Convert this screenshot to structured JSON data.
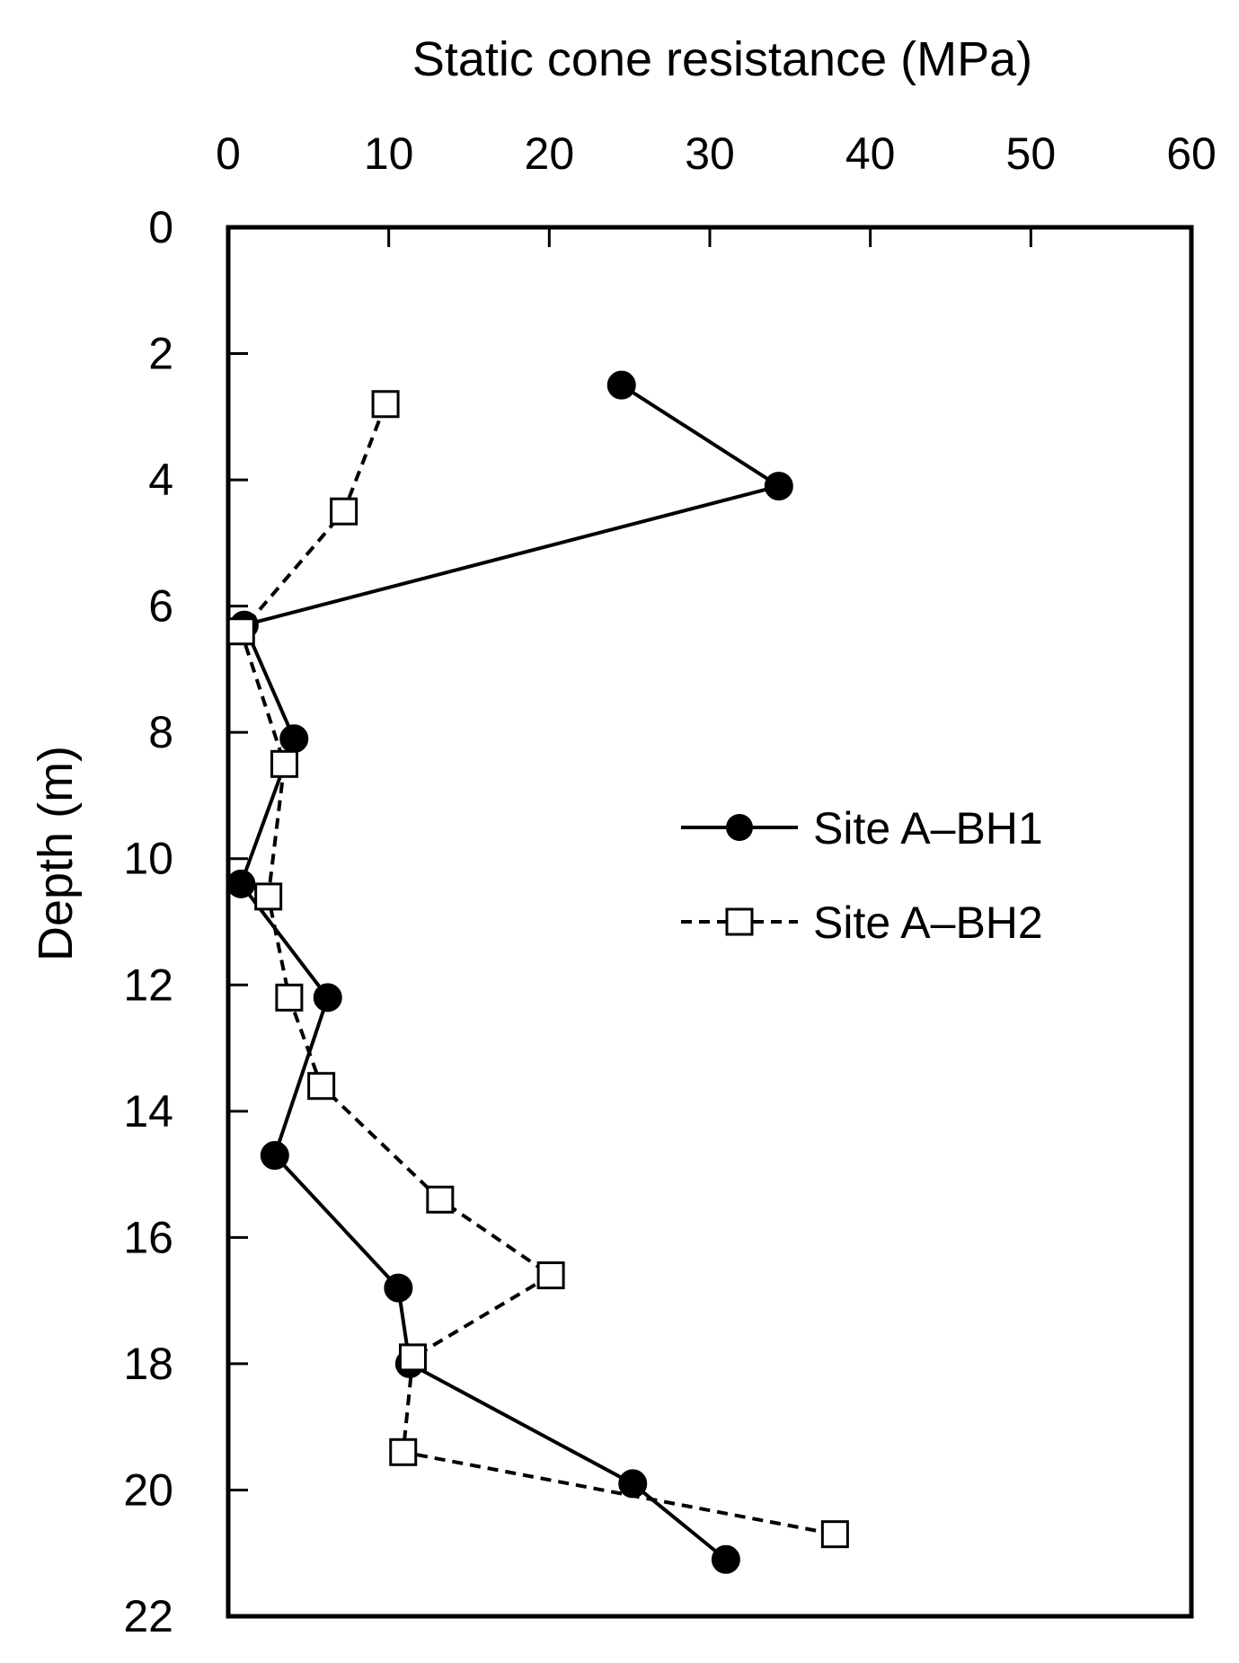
{
  "chart_data": {
    "type": "scatter",
    "title": "",
    "xlabel": "Static cone resistance (MPa)",
    "ylabel": "Depth (m)",
    "x_axis_position": "top",
    "y_axis_inverted": true,
    "xlim": [
      0,
      60
    ],
    "ylim": [
      0,
      22
    ],
    "xticks": [
      0,
      10,
      20,
      30,
      40,
      50,
      60
    ],
    "yticks": [
      0,
      2,
      4,
      6,
      8,
      10,
      12,
      14,
      16,
      18,
      20,
      22
    ],
    "grid": false,
    "legend_position": "right-middle",
    "series": [
      {
        "name": "Site A–BH1",
        "marker": "filled-circle",
        "line": "solid",
        "color": "#000000",
        "points": [
          {
            "x": 24.5,
            "y": 2.5
          },
          {
            "x": 34.3,
            "y": 4.1
          },
          {
            "x": 1.0,
            "y": 6.3
          },
          {
            "x": 4.1,
            "y": 8.1
          },
          {
            "x": 0.8,
            "y": 10.4
          },
          {
            "x": 6.2,
            "y": 12.2
          },
          {
            "x": 2.9,
            "y": 14.7
          },
          {
            "x": 10.6,
            "y": 16.8
          },
          {
            "x": 11.3,
            "y": 18.0
          },
          {
            "x": 25.2,
            "y": 19.9
          },
          {
            "x": 31.0,
            "y": 21.1
          }
        ]
      },
      {
        "name": "Site A–BH2",
        "marker": "open-square",
        "line": "dashed",
        "color": "#000000",
        "points": [
          {
            "x": 9.8,
            "y": 2.8
          },
          {
            "x": 7.2,
            "y": 4.5
          },
          {
            "x": 0.8,
            "y": 6.4
          },
          {
            "x": 3.5,
            "y": 8.5
          },
          {
            "x": 2.5,
            "y": 10.6
          },
          {
            "x": 3.8,
            "y": 12.2
          },
          {
            "x": 5.8,
            "y": 13.6
          },
          {
            "x": 13.2,
            "y": 15.4
          },
          {
            "x": 20.1,
            "y": 16.6
          },
          {
            "x": 11.5,
            "y": 17.9
          },
          {
            "x": 10.9,
            "y": 19.4
          },
          {
            "x": 37.8,
            "y": 20.7
          }
        ]
      }
    ]
  }
}
